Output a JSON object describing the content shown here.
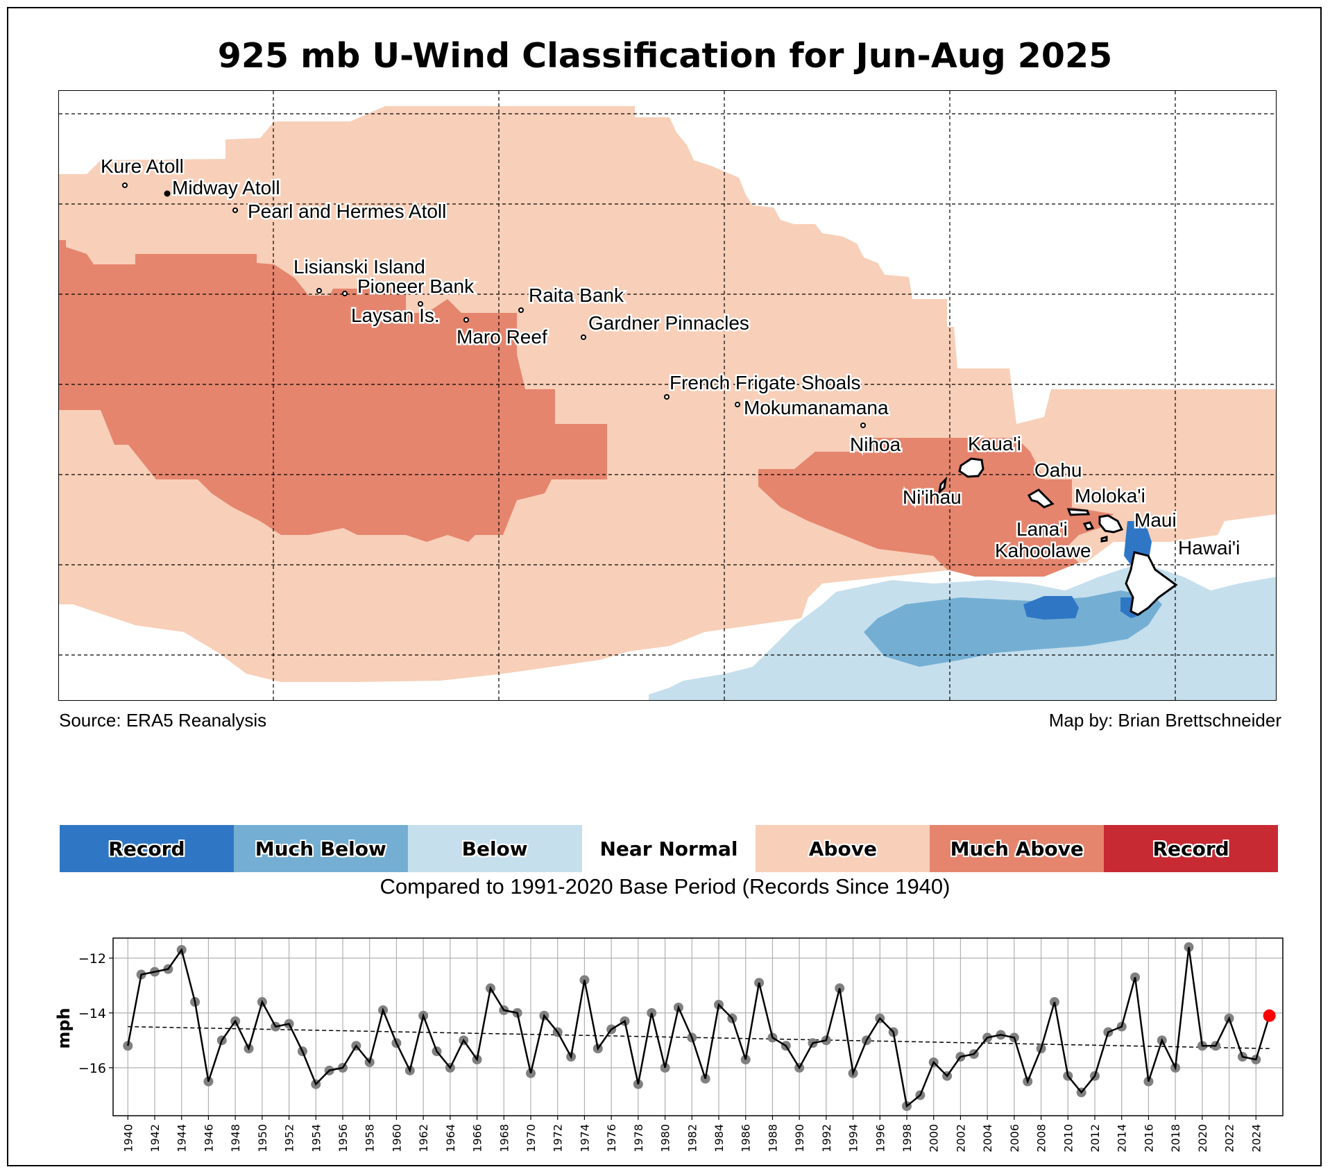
{
  "title": "925 mb U-Wind Classification for Jun-Aug 2025",
  "map": {
    "source": "Source: ERA5 Reanalysis",
    "credit": "Map by: Brian Brettschneider",
    "colors": {
      "record_low": "#2f77c5",
      "much_below": "#74afd3",
      "below": "#c6dfed",
      "near_normal": "#ffffff",
      "above": "#f8cfb8",
      "much_above": "#e5856e",
      "record_high": "#c82a34"
    },
    "place_labels": [
      "Kure Atoll",
      "Midway Atoll",
      "Pearl and Hermes Atoll",
      "Lisianski Island",
      "Pioneer Bank",
      "Laysan Is.",
      "Maro Reef",
      "Raita Bank",
      "Gardner Pinnacles",
      "French Frigate Shoals",
      "Mokumanamana",
      "Nihoa",
      "Kaua'i",
      "Ni'ihau",
      "Oahu",
      "Moloka'i",
      "Maui",
      "Lana'i",
      "Kahoolawe",
      "Hawai'i"
    ]
  },
  "legend": {
    "items": [
      {
        "label": "Record",
        "color": "#2f77c5"
      },
      {
        "label": "Much Below",
        "color": "#74afd3"
      },
      {
        "label": "Below",
        "color": "#c6dfed"
      },
      {
        "label": "Near Normal",
        "color": "#ffffff"
      },
      {
        "label": "Above",
        "color": "#f8cfb8"
      },
      {
        "label": "Much Above",
        "color": "#e5856e"
      },
      {
        "label": "Record",
        "color": "#c82a34"
      }
    ],
    "caption": "Compared to 1991-2020 Base Period   (Records Since 1940)"
  },
  "chart_data": {
    "type": "line",
    "title": "",
    "xlabel": "",
    "ylabel": "mph",
    "ylim": [
      -17.75,
      -11.27
    ],
    "xlim": [
      1938.9,
      2026.0
    ],
    "yticks": [
      -12,
      -14,
      -16
    ],
    "ytick_labels": [
      "−12",
      "−14",
      "−16"
    ],
    "xticks": [
      1940,
      1942,
      1944,
      1946,
      1948,
      1950,
      1952,
      1954,
      1956,
      1958,
      1960,
      1962,
      1964,
      1966,
      1968,
      1970,
      1972,
      1974,
      1976,
      1978,
      1980,
      1982,
      1984,
      1986,
      1988,
      1990,
      1992,
      1994,
      1996,
      1998,
      2000,
      2002,
      2004,
      2006,
      2008,
      2010,
      2012,
      2014,
      2016,
      2018,
      2020,
      2022,
      2024
    ],
    "grid": true,
    "x": [
      1940,
      1941,
      1942,
      1943,
      1944,
      1945,
      1946,
      1947,
      1948,
      1949,
      1950,
      1951,
      1952,
      1953,
      1954,
      1955,
      1956,
      1957,
      1958,
      1959,
      1960,
      1961,
      1962,
      1963,
      1964,
      1965,
      1966,
      1967,
      1968,
      1969,
      1970,
      1971,
      1972,
      1973,
      1974,
      1975,
      1976,
      1977,
      1978,
      1979,
      1980,
      1981,
      1982,
      1983,
      1984,
      1985,
      1986,
      1987,
      1988,
      1989,
      1990,
      1991,
      1992,
      1993,
      1994,
      1995,
      1996,
      1997,
      1998,
      1999,
      2000,
      2001,
      2002,
      2003,
      2004,
      2005,
      2006,
      2007,
      2008,
      2009,
      2010,
      2011,
      2012,
      2013,
      2014,
      2015,
      2016,
      2017,
      2018,
      2019,
      2020,
      2021,
      2022,
      2023,
      2024,
      2025
    ],
    "series": [
      {
        "name": "Jun-Aug 925 mb U-Wind",
        "color": "#000000",
        "marker_color": "#808080",
        "values": [
          -15.2,
          -12.6,
          -12.5,
          -12.4,
          -11.7,
          -13.6,
          -16.5,
          -15.0,
          -14.3,
          -15.3,
          -13.6,
          -14.5,
          -14.4,
          -15.4,
          -16.6,
          -16.1,
          -16.0,
          -15.2,
          -15.8,
          -13.9,
          -15.1,
          -16.1,
          -14.1,
          -15.4,
          -16.0,
          -15.0,
          -15.7,
          -13.1,
          -13.9,
          -14.0,
          -16.2,
          -14.1,
          -14.7,
          -15.6,
          -12.8,
          -15.3,
          -14.6,
          -14.3,
          -16.6,
          -14.0,
          -16.0,
          -13.8,
          -14.9,
          -16.4,
          -13.7,
          -14.2,
          -15.7,
          -12.9,
          -14.9,
          -15.2,
          -16.0,
          -15.1,
          -15.0,
          -13.1,
          -16.2,
          -15.0,
          -14.2,
          -14.7,
          -17.4,
          -17.0,
          -15.8,
          -16.3,
          -15.6,
          -15.5,
          -14.9,
          -14.8,
          -14.9,
          -16.5,
          -15.3,
          -13.6,
          -16.3,
          -16.9,
          -16.3,
          -14.7,
          -14.5,
          -12.7,
          -16.5,
          -15.0,
          -16.0,
          -11.6,
          -15.2,
          -15.2,
          -14.2,
          -15.6,
          -15.7,
          -14.1
        ]
      },
      {
        "name": "Linear trend",
        "style": "dashed",
        "color": "#000000",
        "x": [
          1940,
          2025
        ],
        "values": [
          -14.5,
          -15.3
        ]
      }
    ],
    "highlight": {
      "x": 2025,
      "value": -14.1,
      "color": "#ff0000"
    }
  }
}
